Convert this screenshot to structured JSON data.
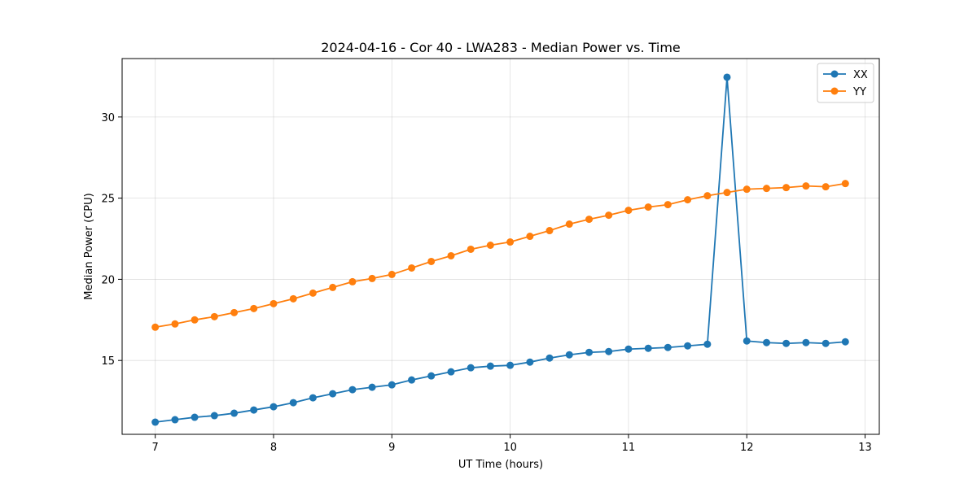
{
  "chart_data": {
    "type": "line",
    "title": "2024-04-16 - Cor 40 - LWA283 - Median Power vs. Time",
    "xlabel": "UT Time (hours)",
    "ylabel": "Median Power (CPU)",
    "xlim": [
      6.72,
      13.12
    ],
    "ylim": [
      10.45,
      33.6
    ],
    "xticks": [
      7,
      8,
      9,
      10,
      11,
      12,
      13
    ],
    "yticks": [
      15,
      20,
      25,
      30
    ],
    "grid": true,
    "legend_position": "top-right",
    "x": [
      7.0,
      7.167,
      7.333,
      7.5,
      7.667,
      7.833,
      8.0,
      8.167,
      8.333,
      8.5,
      8.667,
      8.833,
      9.0,
      9.167,
      9.333,
      9.5,
      9.667,
      9.833,
      10.0,
      10.167,
      10.333,
      10.5,
      10.667,
      10.833,
      11.0,
      11.167,
      11.333,
      11.5,
      11.667,
      11.833,
      12.0,
      12.167,
      12.333,
      12.5,
      12.667,
      12.833
    ],
    "series": [
      {
        "name": "XX",
        "color": "#1f77b4",
        "values": [
          11.2,
          11.35,
          11.5,
          11.6,
          11.75,
          11.95,
          12.15,
          12.4,
          12.7,
          12.95,
          13.2,
          13.35,
          13.5,
          13.8,
          14.05,
          14.3,
          14.55,
          14.65,
          14.7,
          14.9,
          15.15,
          15.35,
          15.5,
          15.55,
          15.7,
          15.75,
          15.8,
          15.9,
          16.0,
          32.45,
          16.2,
          16.1,
          16.05,
          16.1,
          16.05,
          16.15
        ]
      },
      {
        "name": "YY",
        "color": "#ff7f0e",
        "values": [
          17.05,
          17.25,
          17.5,
          17.7,
          17.95,
          18.2,
          18.5,
          18.8,
          19.15,
          19.5,
          19.85,
          20.05,
          20.3,
          20.7,
          21.1,
          21.45,
          21.85,
          22.1,
          22.3,
          22.65,
          23.0,
          23.4,
          23.7,
          23.95,
          24.25,
          24.45,
          24.6,
          24.9,
          25.15,
          25.35,
          25.55,
          25.6,
          25.65,
          25.75,
          25.7,
          25.9
        ]
      }
    ]
  }
}
